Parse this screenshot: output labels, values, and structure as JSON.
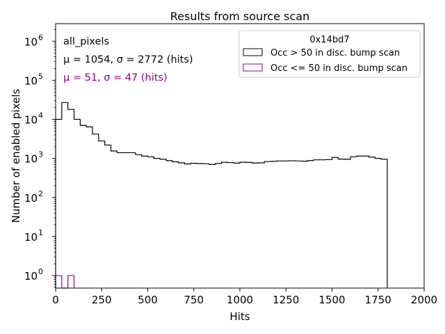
{
  "chart_data": {
    "type": "histogram",
    "title": "Results from source scan",
    "xlabel": "Hits",
    "ylabel": "Number of enabled pixels",
    "xlim": [
      0,
      2000
    ],
    "ylim_log10": [
      -0.32,
      6.45
    ],
    "yscale": "log",
    "x_ticks": [
      0,
      250,
      500,
      750,
      1000,
      1250,
      1500,
      1750,
      2000
    ],
    "y_ticks": [
      {
        "exp": 0,
        "base": "10",
        "power": "0"
      },
      {
        "exp": 1,
        "base": "10",
        "power": "1"
      },
      {
        "exp": 2,
        "base": "10",
        "power": "2"
      },
      {
        "exp": 3,
        "base": "10",
        "power": "3"
      },
      {
        "exp": 4,
        "base": "10",
        "power": "4"
      },
      {
        "exp": 5,
        "base": "10",
        "power": "5"
      },
      {
        "exp": 6,
        "base": "10",
        "power": "6"
      }
    ],
    "bin_width": 33.33,
    "annotations": {
      "label": "all_pixels",
      "stats_main": "μ = 1054, σ = 2772 (hits)",
      "stats_low": "μ = 51, σ = 47 (hits)"
    },
    "legend": {
      "title": "0x14bd7",
      "position": "top-right",
      "entries": [
        "Occ > 50 in disc. bump scan",
        "Occ <= 50 in disc. bump scan"
      ]
    },
    "series": [
      {
        "name": "Occ > 50 in disc. bump scan",
        "color": "#000000",
        "bin_counts": [
          10000,
          27000,
          18000,
          10000,
          7000,
          6400,
          4200,
          2800,
          2200,
          1550,
          1400,
          1400,
          1400,
          1250,
          1150,
          1100,
          1000,
          950,
          880,
          820,
          770,
          720,
          750,
          740,
          730,
          700,
          740,
          800,
          780,
          760,
          800,
          790,
          760,
          770,
          830,
          840,
          860,
          860,
          870,
          860,
          850,
          880,
          920,
          920,
          930,
          1060,
          960,
          950,
          1100,
          1150,
          1150,
          1080,
          1000,
          950
        ]
      },
      {
        "name": "Occ <= 50 in disc. bump scan",
        "color": "#8b008b",
        "bin_counts": [
          1,
          0,
          1
        ]
      }
    ]
  }
}
